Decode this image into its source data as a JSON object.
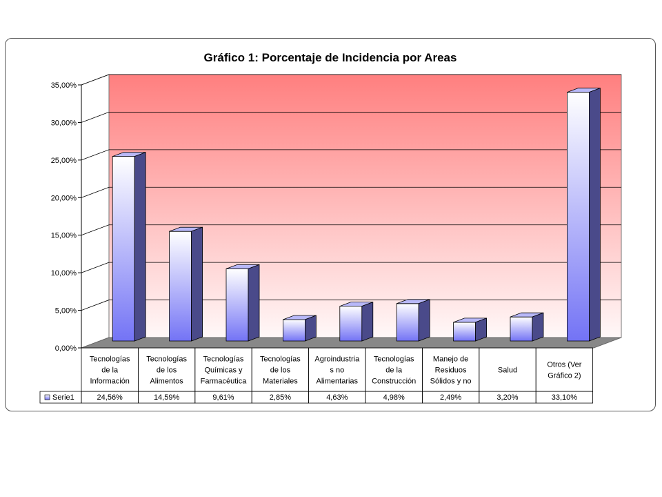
{
  "chart_data": {
    "type": "bar",
    "title": "Gráfico 1: Porcentaje de Incidencia por Areas",
    "categories": [
      [
        "Tecnologías",
        "de la",
        "Información"
      ],
      [
        "Tecnologías",
        "de los",
        "Alimentos"
      ],
      [
        "Tecnologías",
        "Químicas y",
        "Farmacéutica"
      ],
      [
        "Tecnologías",
        "de los",
        "Materiales"
      ],
      [
        "Agroindustria",
        "s no",
        "Alimentarias"
      ],
      [
        "Tecnologías",
        "de la",
        "Construcción"
      ],
      [
        "Manejo de",
        "Residuos",
        "Sólidos y no"
      ],
      [
        "Salud"
      ],
      [
        "Otros (Ver",
        "Gráfico 2)"
      ]
    ],
    "series": [
      {
        "name": "Serie1",
        "values": [
          24.56,
          14.59,
          9.61,
          2.85,
          4.63,
          4.98,
          2.49,
          3.2,
          33.1
        ],
        "labels": [
          "24,56%",
          "14,59%",
          "9,61%",
          "2,85%",
          "4,63%",
          "4,98%",
          "2,49%",
          "3,20%",
          "33,10%"
        ]
      }
    ],
    "yticks": [
      "0,00%",
      "5,00%",
      "10,00%",
      "15,00%",
      "20,00%",
      "25,00%",
      "30,00%",
      "35,00%"
    ],
    "ylim": [
      0,
      35
    ],
    "xlabel": "",
    "ylabel": "",
    "legend": "data-table-left",
    "grid": true,
    "colors": {
      "wall_top": "#ff7f7f",
      "wall_bottom": "#fff8f8",
      "bar_front_top": "#ffffff",
      "bar_front_bottom": "#7373f5",
      "bar_top": "#b8b8f8",
      "bar_side": "#4a4a8a",
      "floor": "#888888"
    }
  }
}
